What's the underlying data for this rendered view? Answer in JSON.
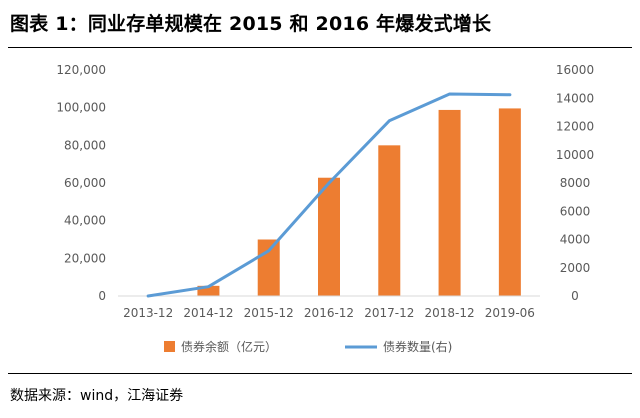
{
  "header": {
    "title": "图表 1：同业存单规模在 2015 和 2016 年爆发式增长"
  },
  "footer": {
    "source": "数据来源：wind，江海证券"
  },
  "chart_data": {
    "type": "bar+line",
    "categories": [
      "2013-12",
      "2014-12",
      "2015-12",
      "2016-12",
      "2017-12",
      "2018-12",
      "2019-06"
    ],
    "series": [
      {
        "name": "债券余额（亿元）",
        "type": "bar",
        "axis": "left",
        "color": "#ED7D31",
        "values": [
          0,
          5400,
          30000,
          62800,
          80000,
          98800,
          99600
        ]
      },
      {
        "name": "债券数量(右)",
        "type": "line",
        "axis": "right",
        "color": "#5B9BD5",
        "values": [
          0,
          660,
          3200,
          8000,
          12400,
          14300,
          14250
        ]
      }
    ],
    "left_axis": {
      "min": 0,
      "max": 120000,
      "step": 20000,
      "tick_labels": [
        "0",
        "20,000",
        "40,000",
        "60,000",
        "80,000",
        "100,000",
        "120,000"
      ]
    },
    "right_axis": {
      "min": 0,
      "max": 16000,
      "step": 2000,
      "tick_labels": [
        "0",
        "2000",
        "4000",
        "6000",
        "8000",
        "10000",
        "12000",
        "14000",
        "16000"
      ]
    },
    "grid": false,
    "legend_position": "bottom"
  }
}
